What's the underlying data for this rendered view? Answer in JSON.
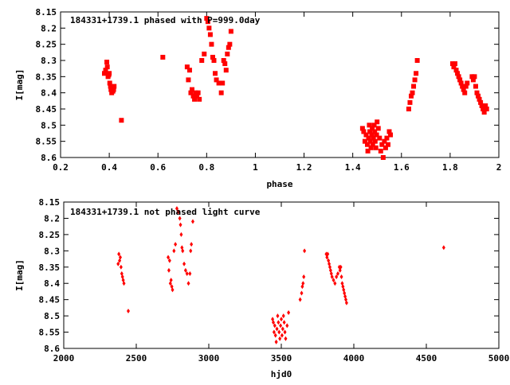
{
  "chart_data": [
    {
      "type": "scatter",
      "title": "184331+1739.1 phased with P=999.0day",
      "xlabel": "phase",
      "ylabel": "I[mag]",
      "xlim": [
        0.2,
        2.0
      ],
      "ylim": [
        8.15,
        8.6
      ],
      "y_inverted": true,
      "xticks": [
        "0.2",
        "0.4",
        "0.6",
        "0.8",
        "1",
        "1.2",
        "1.4",
        "1.6",
        "1.8",
        "2"
      ],
      "xtick_values": [
        0.2,
        0.4,
        0.6,
        0.8,
        1.0,
        1.2,
        1.4,
        1.6,
        1.8,
        2.0
      ],
      "yticks": [
        "8.15",
        "8.2",
        "8.25",
        "8.3",
        "8.35",
        "8.4",
        "8.45",
        "8.5",
        "8.55",
        "8.6"
      ],
      "ytick_values": [
        8.15,
        8.2,
        8.25,
        8.3,
        8.35,
        8.4,
        8.45,
        8.5,
        8.55,
        8.6
      ],
      "grid": false,
      "marker": "square",
      "color": "#ff0000",
      "series": [
        {
          "x": [
            0.38,
            0.385,
            0.39,
            0.392,
            0.395,
            0.398,
            0.4,
            0.402,
            0.405,
            0.407,
            0.41,
            0.412,
            0.415,
            0.418,
            0.42,
            0.45,
            0.62,
            0.72,
            0.725,
            0.73,
            0.735,
            0.74,
            0.745,
            0.75,
            0.755,
            0.76,
            0.765,
            0.77,
            0.78,
            0.79,
            0.8,
            0.805,
            0.81,
            0.815,
            0.82,
            0.825,
            0.83,
            0.835,
            0.84,
            0.85,
            0.86,
            0.865,
            0.87,
            0.875,
            0.88,
            0.885,
            0.89,
            0.895,
            0.9,
            1.44,
            1.445,
            1.45,
            1.455,
            1.46,
            1.462,
            1.465,
            1.468,
            1.47,
            1.472,
            1.475,
            1.478,
            1.48,
            1.482,
            1.485,
            1.488,
            1.49,
            1.492,
            1.495,
            1.498,
            1.5,
            1.505,
            1.51,
            1.515,
            1.52,
            1.525,
            1.53,
            1.535,
            1.54,
            1.545,
            1.55,
            1.555,
            1.63,
            1.635,
            1.64,
            1.645,
            1.65,
            1.655,
            1.66,
            1.665,
            1.81,
            1.815,
            1.82,
            1.825,
            1.83,
            1.835,
            1.84,
            1.845,
            1.85,
            1.855,
            1.86,
            1.865,
            1.87,
            1.89,
            1.895,
            1.9,
            1.905,
            1.91,
            1.915,
            1.92,
            1.925,
            1.93,
            1.935,
            1.94,
            1.945,
            1.95
          ],
          "y": [
            8.34,
            8.33,
            8.305,
            8.32,
            8.35,
            8.345,
            8.34,
            8.37,
            8.38,
            8.39,
            8.4,
            8.385,
            8.395,
            8.39,
            8.38,
            8.485,
            8.29,
            8.32,
            8.36,
            8.33,
            8.4,
            8.39,
            8.41,
            8.42,
            8.4,
            8.41,
            8.4,
            8.42,
            8.3,
            8.28,
            8.17,
            8.18,
            8.2,
            8.22,
            8.25,
            8.29,
            8.3,
            8.34,
            8.36,
            8.37,
            8.4,
            8.37,
            8.3,
            8.31,
            8.33,
            8.28,
            8.26,
            8.25,
            8.21,
            8.51,
            8.52,
            8.55,
            8.53,
            8.56,
            8.58,
            8.54,
            8.5,
            8.52,
            8.55,
            8.57,
            8.53,
            8.51,
            8.56,
            8.54,
            8.5,
            8.52,
            8.55,
            8.57,
            8.53,
            8.49,
            8.51,
            8.54,
            8.58,
            8.56,
            8.6,
            8.55,
            8.57,
            8.54,
            8.56,
            8.52,
            8.53,
            8.45,
            8.43,
            8.41,
            8.4,
            8.38,
            8.36,
            8.34,
            8.3,
            8.31,
            8.32,
            8.31,
            8.33,
            8.34,
            8.35,
            8.36,
            8.37,
            8.38,
            8.39,
            8.4,
            8.38,
            8.37,
            8.35,
            8.36,
            8.35,
            8.38,
            8.4,
            8.41,
            8.42,
            8.43,
            8.44,
            8.45,
            8.46,
            8.44,
            8.45
          ]
        }
      ]
    },
    {
      "type": "scatter",
      "title": "184331+1739.1 not phased light curve",
      "xlabel": "hjd0",
      "ylabel": "I[mag]",
      "xlim": [
        2000,
        5000
      ],
      "ylim": [
        8.15,
        8.6
      ],
      "y_inverted": true,
      "xticks": [
        "2000",
        "2500",
        "3000",
        "3500",
        "4000",
        "4500",
        "5000"
      ],
      "xtick_values": [
        2000,
        2500,
        3000,
        3500,
        4000,
        4500,
        5000
      ],
      "yticks": [
        "8.15",
        "8.2",
        "8.25",
        "8.3",
        "8.35",
        "8.4",
        "8.45",
        "8.5",
        "8.55",
        "8.6"
      ],
      "ytick_values": [
        8.15,
        8.2,
        8.25,
        8.3,
        8.35,
        8.4,
        8.45,
        8.5,
        8.55,
        8.6
      ],
      "grid": false,
      "marker": "diamond",
      "color": "#ff0000",
      "series": [
        {
          "x": [
            2375,
            2380,
            2385,
            2390,
            2395,
            2400,
            2405,
            2410,
            2415,
            2445,
            2720,
            2725,
            2730,
            2735,
            2740,
            2745,
            2750,
            2760,
            2770,
            2780,
            2790,
            2800,
            2805,
            2810,
            2815,
            2820,
            2830,
            2840,
            2850,
            2860,
            2870,
            2875,
            2880,
            2890,
            3440,
            3445,
            3450,
            3455,
            3460,
            3465,
            3470,
            3475,
            3480,
            3485,
            3490,
            3495,
            3500,
            3505,
            3510,
            3515,
            3520,
            3525,
            3530,
            3540,
            3550,
            3630,
            3640,
            3645,
            3650,
            3655,
            3660,
            3810,
            3815,
            3820,
            3825,
            3830,
            3835,
            3840,
            3845,
            3850,
            3860,
            3870,
            3880,
            3890,
            3900,
            3905,
            3910,
            3915,
            3920,
            3925,
            3930,
            3935,
            3940,
            3945,
            3950,
            4620
          ],
          "y": [
            8.34,
            8.31,
            8.33,
            8.32,
            8.35,
            8.37,
            8.38,
            8.39,
            8.4,
            8.485,
            8.32,
            8.36,
            8.33,
            8.4,
            8.39,
            8.41,
            8.42,
            8.3,
            8.28,
            8.17,
            8.18,
            8.2,
            8.22,
            8.25,
            8.29,
            8.3,
            8.34,
            8.36,
            8.37,
            8.4,
            8.37,
            8.3,
            8.28,
            8.21,
            8.51,
            8.52,
            8.55,
            8.53,
            8.56,
            8.58,
            8.54,
            8.5,
            8.52,
            8.55,
            8.57,
            8.53,
            8.51,
            8.56,
            8.54,
            8.5,
            8.52,
            8.55,
            8.57,
            8.53,
            8.49,
            8.45,
            8.43,
            8.41,
            8.4,
            8.38,
            8.3,
            8.31,
            8.32,
            8.31,
            8.33,
            8.34,
            8.35,
            8.36,
            8.37,
            8.38,
            8.39,
            8.4,
            8.38,
            8.37,
            8.35,
            8.36,
            8.35,
            8.38,
            8.4,
            8.41,
            8.42,
            8.43,
            8.44,
            8.45,
            8.46,
            8.29
          ]
        }
      ]
    }
  ]
}
